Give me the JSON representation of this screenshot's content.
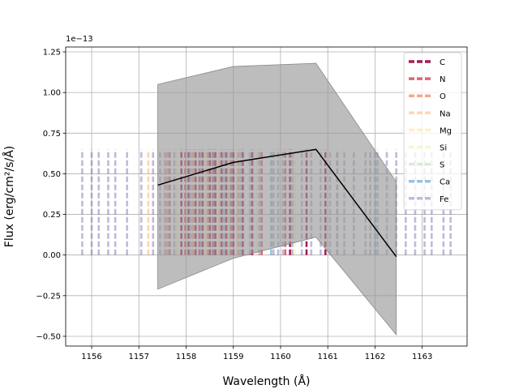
{
  "chart_data": {
    "type": "line",
    "xlabel": "Wavelength (Å)",
    "ylabel": "Flux (erg/cm²/s/Å)",
    "offset_text": "1e−13",
    "xlim": [
      1155.45,
      1163.95
    ],
    "ylim": [
      -0.56,
      1.28
    ],
    "x_ticks": [
      1156,
      1157,
      1158,
      1159,
      1160,
      1161,
      1162,
      1163
    ],
    "y_ticks": [
      -0.5,
      -0.25,
      0.0,
      0.25,
      0.5,
      0.75,
      1.0,
      1.25
    ],
    "y_tick_labels": [
      "−0.50",
      "−0.25",
      "0.00",
      "0.25",
      "0.50",
      "0.75",
      "1.00",
      "1.25"
    ],
    "grid": true,
    "legend_position": "top-right",
    "series": [
      {
        "type": "line",
        "color": "#000000",
        "x": [
          1157.4,
          1159.0,
          1160.75,
          1162.45
        ],
        "y": [
          0.43,
          0.57,
          0.65,
          -0.01
        ]
      }
    ],
    "band": {
      "color": "#999999",
      "x": [
        1157.4,
        1159.0,
        1160.75,
        1162.45
      ],
      "upper": [
        1.05,
        1.16,
        1.18,
        0.45
      ],
      "lower": [
        -0.21,
        -0.02,
        0.11,
        -0.49
      ]
    },
    "line_markers": {
      "ymin": 0.0,
      "ymax": 0.65,
      "elements": [
        {
          "name": "C",
          "color": "#9e0142",
          "alpha": 0.9,
          "x": [
            1157.9,
            1158.05,
            1158.2,
            1158.35,
            1158.5,
            1158.62,
            1158.75,
            1158.85,
            1159.0,
            1159.2,
            1159.4,
            1160.2,
            1160.55,
            1160.95
          ]
        },
        {
          "name": "N",
          "color": "#d53e4f",
          "alpha": 0.8,
          "x": [
            1157.65,
            1157.98,
            1158.28,
            1158.58,
            1158.95,
            1159.6,
            1160.1
          ]
        },
        {
          "name": "O",
          "color": "#f46d43",
          "alpha": 0.6,
          "x": [
            1157.55,
            1158.15,
            1158.45,
            1159.1
          ]
        },
        {
          "name": "Na",
          "color": "#fdae61",
          "alpha": 0.5,
          "x": [
            1157.2,
            1158.7
          ]
        },
        {
          "name": "Mg",
          "color": "#fee08b",
          "alpha": 0.5,
          "x": [
            1157.8,
            1159.5
          ]
        },
        {
          "name": "Si",
          "color": "#e6f598",
          "alpha": 0.5,
          "x": [
            1158.4,
            1160.3
          ]
        },
        {
          "name": "S",
          "color": "#abdda4",
          "alpha": 0.5,
          "x": [
            1158.9,
            1161.2
          ]
        },
        {
          "name": "Ca",
          "color": "#3288bd",
          "alpha": 0.5,
          "x": [
            1159.8,
            1162.0
          ]
        },
        {
          "name": "Fe",
          "color": "#5e4fa2",
          "alpha": 0.4,
          "x": [
            1155.8,
            1156.0,
            1156.15,
            1156.35,
            1156.5,
            1156.75,
            1157.05,
            1157.3,
            1157.45,
            1157.6,
            1157.75,
            1158.1,
            1158.3,
            1158.55,
            1158.8,
            1159.15,
            1159.35,
            1159.55,
            1159.85,
            1159.95,
            1160.05,
            1160.25,
            1160.45,
            1160.65,
            1160.85,
            1161.05,
            1161.2,
            1161.35,
            1161.55,
            1161.8,
            1161.9,
            1162.05,
            1162.25,
            1162.45,
            1162.65,
            1162.85,
            1163.05,
            1163.2,
            1163.45,
            1163.6
          ]
        }
      ]
    }
  }
}
